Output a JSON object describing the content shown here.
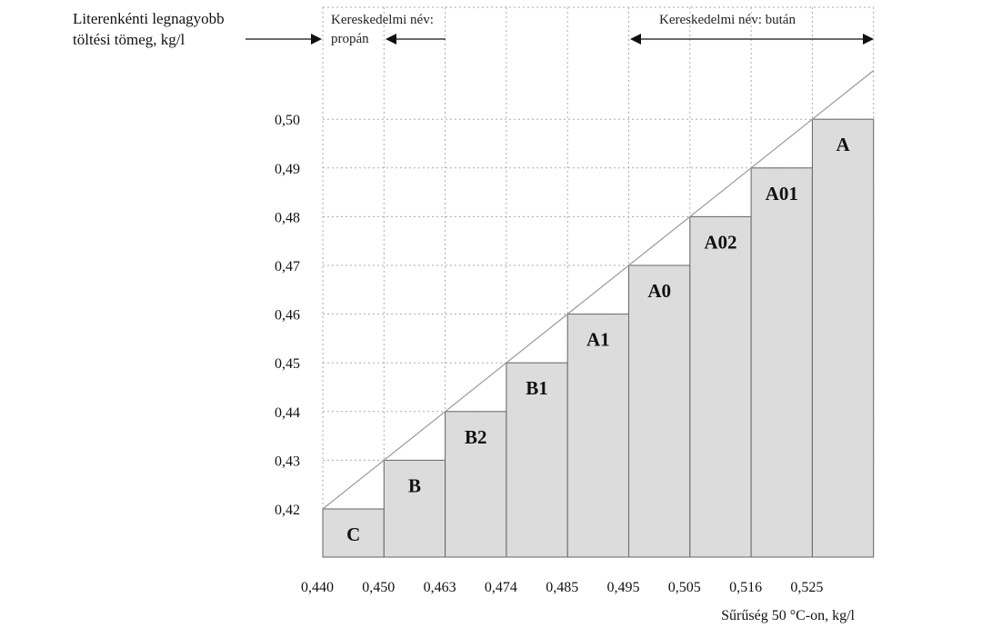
{
  "chart_data": {
    "type": "bar",
    "ylabel": [
      "Literenkénti legnagyobb",
      "töltési tömeg, kg/l"
    ],
    "xlabel": "Sűrűség 50 °C-on, kg/l",
    "x_ticks": [
      "0,440",
      "0,450",
      "0,463",
      "0,474",
      "0,485",
      "0,495",
      "0,505",
      "0,516",
      "0,525"
    ],
    "y_ticks": [
      "0,42",
      "0,43",
      "0,44",
      "0,45",
      "0,46",
      "0,47",
      "0,48",
      "0,49",
      "0,50"
    ],
    "ylim": [
      0.41,
      0.5
    ],
    "grid": true,
    "bars": [
      {
        "label": "C",
        "from": "0,440",
        "to": "0,450",
        "value": 0.42
      },
      {
        "label": "B",
        "from": "0,450",
        "to": "0,463",
        "value": 0.43
      },
      {
        "label": "B2",
        "from": "0,463",
        "to": "0,474",
        "value": 0.44
      },
      {
        "label": "B1",
        "from": "0,474",
        "to": "0,485",
        "value": 0.45
      },
      {
        "label": "A1",
        "from": "0,485",
        "to": "0,495",
        "value": 0.46
      },
      {
        "label": "A0",
        "from": "0,495",
        "to": "0,505",
        "value": 0.47
      },
      {
        "label": "A02",
        "from": "0,505",
        "to": "0,516",
        "value": 0.48
      },
      {
        "label": "A01",
        "from": "0,516",
        "to": "0,525",
        "value": 0.49
      },
      {
        "label": "A",
        "from": "0,525",
        "to": "",
        "value": 0.5
      }
    ],
    "annotations": {
      "propane": [
        "Kereskedelmi név:",
        "propán"
      ],
      "butane": "Kereskedelmi név: bután"
    },
    "colors": {
      "bar_fill": "#dcdcdc",
      "bar_stroke": "#666666",
      "grid": "#aaaaaa",
      "diagonal": "#999999"
    }
  }
}
